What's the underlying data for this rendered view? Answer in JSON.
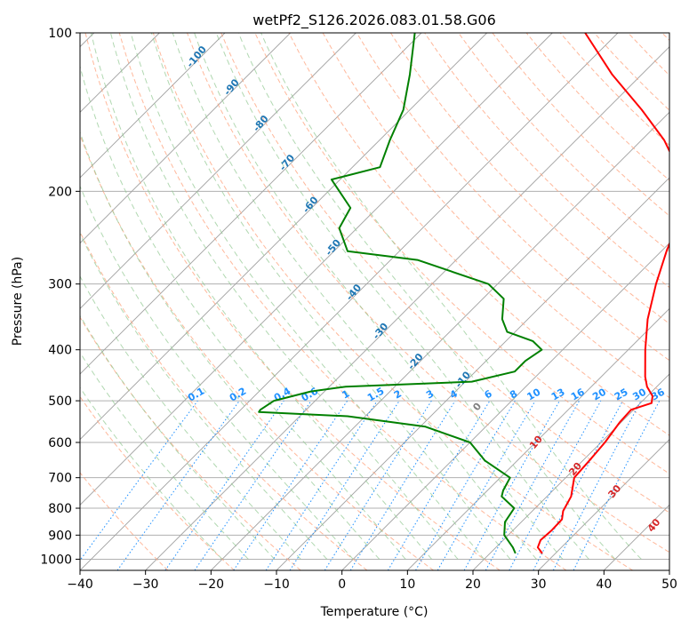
{
  "chart_data": {
    "type": "line",
    "subtype": "skew-T log-P diagram",
    "title": "wetPf2_S126.2026.083.01.58.G06",
    "xlabel": "Temperature (°C)",
    "ylabel": "Pressure (hPa)",
    "xlim": [
      -40,
      50
    ],
    "ylim": [
      1050,
      100
    ],
    "yscale": "log",
    "grid": true,
    "x_ticks": [
      -40,
      -30,
      -20,
      -10,
      0,
      10,
      20,
      30,
      40,
      50
    ],
    "y_ticks": [
      100,
      200,
      300,
      400,
      500,
      600,
      700,
      800,
      900,
      1000
    ],
    "series": [
      {
        "role": "temperature",
        "color": "#ff0000",
        "points": [
          {
            "p": 975,
            "t": 28.0
          },
          {
            "p": 950,
            "t": 26.4
          },
          {
            "p": 920,
            "t": 25.7
          },
          {
            "p": 880,
            "t": 25.9
          },
          {
            "p": 840,
            "t": 25.8
          },
          {
            "p": 810,
            "t": 24.7
          },
          {
            "p": 760,
            "t": 23.7
          },
          {
            "p": 700,
            "t": 21.3
          },
          {
            "p": 650,
            "t": 21.0
          },
          {
            "p": 600,
            "t": 20.6
          },
          {
            "p": 550,
            "t": 19.8
          },
          {
            "p": 520,
            "t": 19.6
          },
          {
            "p": 505,
            "t": 21.7
          },
          {
            "p": 490,
            "t": 20.8
          },
          {
            "p": 470,
            "t": 18.5
          },
          {
            "p": 450,
            "t": 16.7
          },
          {
            "p": 400,
            "t": 12.6
          },
          {
            "p": 350,
            "t": 8.3
          },
          {
            "p": 300,
            "t": 4.2
          },
          {
            "p": 260,
            "t": 0.8
          },
          {
            "p": 220,
            "t": -2.7
          },
          {
            "p": 200,
            "t": -6.2
          },
          {
            "p": 180,
            "t": -10.4
          },
          {
            "p": 160,
            "t": -16.5
          },
          {
            "p": 140,
            "t": -24.6
          },
          {
            "p": 120,
            "t": -34.5
          },
          {
            "p": 100,
            "t": -45.0
          }
        ]
      },
      {
        "role": "dewpoint",
        "color": "#008000",
        "points": [
          {
            "p": 975,
            "t": 23.9
          },
          {
            "p": 950,
            "t": 22.6
          },
          {
            "p": 900,
            "t": 19.4
          },
          {
            "p": 850,
            "t": 17.5
          },
          {
            "p": 800,
            "t": 16.8
          },
          {
            "p": 760,
            "t": 13.1
          },
          {
            "p": 740,
            "t": 12.4
          },
          {
            "p": 700,
            "t": 11.5
          },
          {
            "p": 650,
            "t": 5.1
          },
          {
            "p": 600,
            "t": 0.0
          },
          {
            "p": 560,
            "t": -9.2
          },
          {
            "p": 535,
            "t": -22.7
          },
          {
            "p": 525,
            "t": -36.9
          },
          {
            "p": 520,
            "t": -37.0
          },
          {
            "p": 500,
            "t": -36.3
          },
          {
            "p": 480,
            "t": -32.1
          },
          {
            "p": 470,
            "t": -27.5
          },
          {
            "p": 460,
            "t": -9.0
          },
          {
            "p": 440,
            "t": -4.0
          },
          {
            "p": 420,
            "t": -4.0
          },
          {
            "p": 400,
            "t": -3.2
          },
          {
            "p": 385,
            "t": -5.9
          },
          {
            "p": 370,
            "t": -11.2
          },
          {
            "p": 350,
            "t": -13.9
          },
          {
            "p": 320,
            "t": -16.8
          },
          {
            "p": 300,
            "t": -21.4
          },
          {
            "p": 270,
            "t": -35.9
          },
          {
            "p": 260,
            "t": -47.9
          },
          {
            "p": 235,
            "t": -52.7
          },
          {
            "p": 215,
            "t": -54.1
          },
          {
            "p": 190,
            "t": -61.3
          },
          {
            "p": 180,
            "t": -55.8
          },
          {
            "p": 160,
            "t": -58.4
          },
          {
            "p": 140,
            "t": -61.0
          },
          {
            "p": 120,
            "t": -65.4
          },
          {
            "p": 100,
            "t": -71.0
          }
        ]
      }
    ],
    "dry_adiabat_labels": [
      "-100",
      "-90",
      "-80",
      "-70",
      "-60",
      "-50",
      "-40",
      "-30",
      "-20",
      "-10"
    ],
    "moist_adiabat_labels": [
      {
        "text": "0",
        "color": "#808080"
      },
      {
        "text": "10",
        "color": "#d62728"
      },
      {
        "text": "20",
        "color": "#d62728"
      },
      {
        "text": "30",
        "color": "#d62728"
      },
      {
        "text": "40",
        "color": "#d62728"
      }
    ],
    "mixing_ratio_labels": [
      "0.1",
      "0.2",
      "0.4",
      "0.6",
      "1",
      "1.5",
      "2",
      "3",
      "4",
      "6",
      "8",
      "10",
      "13",
      "16",
      "20",
      "25",
      "30",
      "36"
    ],
    "colors": {
      "isotherm_grid": "#a0a0a0",
      "isobar_grid": "#b0b0b0",
      "dry_adiabat": "#ffa07a",
      "moist_adiabat": "#90c890",
      "mixing_ratio": "#1e90ff",
      "dry_adiabat_label": "#1f77b4",
      "mixing_ratio_label": "#1e90ff"
    }
  }
}
